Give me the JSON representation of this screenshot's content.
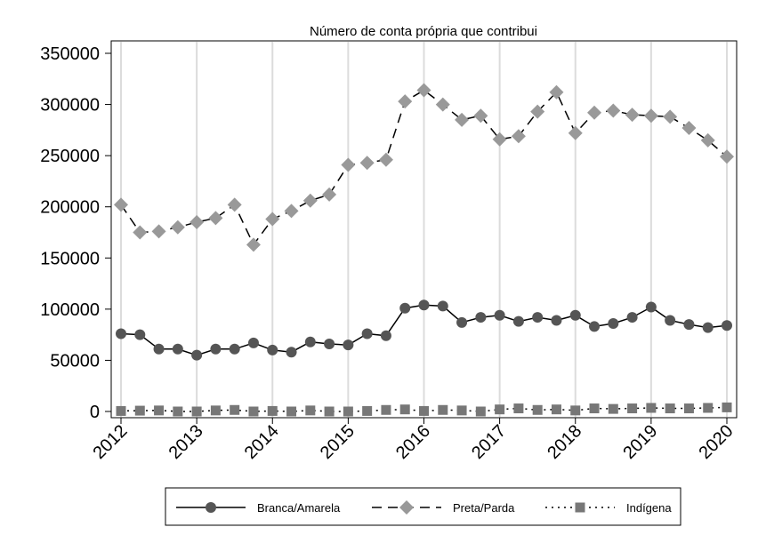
{
  "chart_data": {
    "type": "line",
    "title": "Número de conta própria que contribui",
    "xlabel": "",
    "ylabel": "",
    "xlim": [
      2012,
      2020
    ],
    "ylim": [
      0,
      350000
    ],
    "yticks": [
      0,
      50000,
      100000,
      150000,
      200000,
      250000,
      300000,
      350000
    ],
    "ytick_labels": [
      "0",
      "50000",
      "100000",
      "150000",
      "200000",
      "250000",
      "300000",
      "350000"
    ],
    "xticks": [
      2012,
      2013,
      2014,
      2015,
      2016,
      2017,
      2018,
      2019,
      2020
    ],
    "xtick_labels": [
      "2012",
      "2013",
      "2014",
      "2015",
      "2016",
      "2017",
      "2018",
      "2019",
      "2020"
    ],
    "grid": "vertical",
    "legend_position": "bottom",
    "x": [
      2012,
      2012.25,
      2012.5,
      2012.75,
      2013,
      2013.25,
      2013.5,
      2013.75,
      2014,
      2014.25,
      2014.5,
      2014.75,
      2015,
      2015.25,
      2015.5,
      2015.75,
      2016,
      2016.25,
      2016.5,
      2016.75,
      2017,
      2017.25,
      2017.5,
      2017.75,
      2018,
      2018.25,
      2018.5,
      2018.75,
      2019,
      2019.25,
      2019.5,
      2019.75,
      2020
    ],
    "series": [
      {
        "name": "Branca/Amarela",
        "color": "#555555",
        "line": "solid",
        "marker": "circle",
        "values": [
          76000,
          75000,
          61000,
          61000,
          55000,
          61000,
          61000,
          67000,
          60000,
          58000,
          68000,
          66000,
          65000,
          76000,
          74000,
          101000,
          104000,
          103000,
          87000,
          92000,
          94000,
          88000,
          92000,
          89000,
          94000,
          83000,
          86000,
          92000,
          102000,
          89000,
          85000,
          82000,
          84000
        ]
      },
      {
        "name": "Preta/Parda",
        "color": "#999999",
        "line": "dashed",
        "marker": "diamond",
        "values": [
          202000,
          175000,
          176000,
          180000,
          185000,
          189000,
          202000,
          163000,
          188000,
          196000,
          206000,
          212000,
          241000,
          243000,
          246000,
          303000,
          314000,
          300000,
          285000,
          289000,
          266000,
          269000,
          293000,
          312000,
          272000,
          292000,
          294000,
          290000,
          289000,
          288000,
          277000,
          265000,
          249000
        ]
      },
      {
        "name": "Indígena",
        "color": "#777777",
        "line": "dotted",
        "marker": "square",
        "values": [
          500,
          800,
          1000,
          0,
          0,
          1000,
          1500,
          0,
          500,
          0,
          1000,
          0,
          0,
          500,
          1500,
          2000,
          500,
          1500,
          1000,
          0,
          2000,
          3000,
          1500,
          2000,
          1000,
          3000,
          2500,
          3000,
          3500,
          3000,
          3000,
          3500,
          4000
        ]
      }
    ]
  }
}
